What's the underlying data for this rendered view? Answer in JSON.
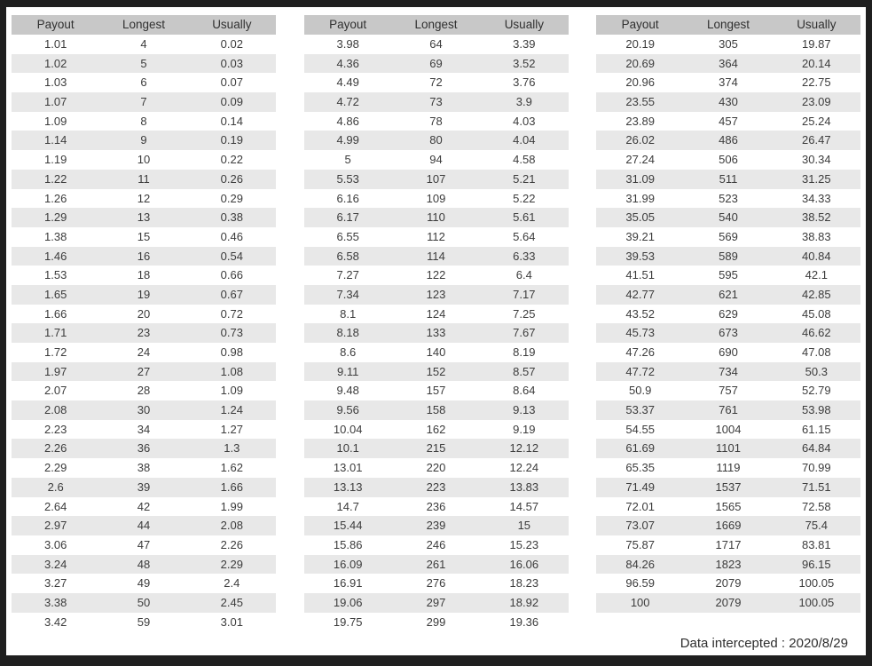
{
  "chart_data": {
    "type": "table",
    "columns": [
      "Payout",
      "Longest",
      "Usually"
    ],
    "tables": [
      {
        "name": "payout-table-1",
        "rows": [
          [
            "1.01",
            "4",
            "0.02"
          ],
          [
            "1.02",
            "5",
            "0.03"
          ],
          [
            "1.03",
            "6",
            "0.07"
          ],
          [
            "1.07",
            "7",
            "0.09"
          ],
          [
            "1.09",
            "8",
            "0.14"
          ],
          [
            "1.14",
            "9",
            "0.19"
          ],
          [
            "1.19",
            "10",
            "0.22"
          ],
          [
            "1.22",
            "11",
            "0.26"
          ],
          [
            "1.26",
            "12",
            "0.29"
          ],
          [
            "1.29",
            "13",
            "0.38"
          ],
          [
            "1.38",
            "15",
            "0.46"
          ],
          [
            "1.46",
            "16",
            "0.54"
          ],
          [
            "1.53",
            "18",
            "0.66"
          ],
          [
            "1.65",
            "19",
            "0.67"
          ],
          [
            "1.66",
            "20",
            "0.72"
          ],
          [
            "1.71",
            "23",
            "0.73"
          ],
          [
            "1.72",
            "24",
            "0.98"
          ],
          [
            "1.97",
            "27",
            "1.08"
          ],
          [
            "2.07",
            "28",
            "1.09"
          ],
          [
            "2.08",
            "30",
            "1.24"
          ],
          [
            "2.23",
            "34",
            "1.27"
          ],
          [
            "2.26",
            "36",
            "1.3"
          ],
          [
            "2.29",
            "38",
            "1.62"
          ],
          [
            "2.6",
            "39",
            "1.66"
          ],
          [
            "2.64",
            "42",
            "1.99"
          ],
          [
            "2.97",
            "44",
            "2.08"
          ],
          [
            "3.06",
            "47",
            "2.26"
          ],
          [
            "3.24",
            "48",
            "2.29"
          ],
          [
            "3.27",
            "49",
            "2.4"
          ],
          [
            "3.38",
            "50",
            "2.45"
          ],
          [
            "3.42",
            "59",
            "3.01"
          ]
        ]
      },
      {
        "name": "payout-table-2",
        "rows": [
          [
            "3.98",
            "64",
            "3.39"
          ],
          [
            "4.36",
            "69",
            "3.52"
          ],
          [
            "4.49",
            "72",
            "3.76"
          ],
          [
            "4.72",
            "73",
            "3.9"
          ],
          [
            "4.86",
            "78",
            "4.03"
          ],
          [
            "4.99",
            "80",
            "4.04"
          ],
          [
            "5",
            "94",
            "4.58"
          ],
          [
            "5.53",
            "107",
            "5.21"
          ],
          [
            "6.16",
            "109",
            "5.22"
          ],
          [
            "6.17",
            "110",
            "5.61"
          ],
          [
            "6.55",
            "112",
            "5.64"
          ],
          [
            "6.58",
            "114",
            "6.33"
          ],
          [
            "7.27",
            "122",
            "6.4"
          ],
          [
            "7.34",
            "123",
            "7.17"
          ],
          [
            "8.1",
            "124",
            "7.25"
          ],
          [
            "8.18",
            "133",
            "7.67"
          ],
          [
            "8.6",
            "140",
            "8.19"
          ],
          [
            "9.11",
            "152",
            "8.57"
          ],
          [
            "9.48",
            "157",
            "8.64"
          ],
          [
            "9.56",
            "158",
            "9.13"
          ],
          [
            "10.04",
            "162",
            "9.19"
          ],
          [
            "10.1",
            "215",
            "12.12"
          ],
          [
            "13.01",
            "220",
            "12.24"
          ],
          [
            "13.13",
            "223",
            "13.83"
          ],
          [
            "14.7",
            "236",
            "14.57"
          ],
          [
            "15.44",
            "239",
            "15"
          ],
          [
            "15.86",
            "246",
            "15.23"
          ],
          [
            "16.09",
            "261",
            "16.06"
          ],
          [
            "16.91",
            "276",
            "18.23"
          ],
          [
            "19.06",
            "297",
            "18.92"
          ],
          [
            "19.75",
            "299",
            "19.36"
          ]
        ]
      },
      {
        "name": "payout-table-3",
        "rows": [
          [
            "20.19",
            "305",
            "19.87"
          ],
          [
            "20.69",
            "364",
            "20.14"
          ],
          [
            "20.96",
            "374",
            "22.75"
          ],
          [
            "23.55",
            "430",
            "23.09"
          ],
          [
            "23.89",
            "457",
            "25.24"
          ],
          [
            "26.02",
            "486",
            "26.47"
          ],
          [
            "27.24",
            "506",
            "30.34"
          ],
          [
            "31.09",
            "511",
            "31.25"
          ],
          [
            "31.99",
            "523",
            "34.33"
          ],
          [
            "35.05",
            "540",
            "38.52"
          ],
          [
            "39.21",
            "569",
            "38.83"
          ],
          [
            "39.53",
            "589",
            "40.84"
          ],
          [
            "41.51",
            "595",
            "42.1"
          ],
          [
            "42.77",
            "621",
            "42.85"
          ],
          [
            "43.52",
            "629",
            "45.08"
          ],
          [
            "45.73",
            "673",
            "46.62"
          ],
          [
            "47.26",
            "690",
            "47.08"
          ],
          [
            "47.72",
            "734",
            "50.3"
          ],
          [
            "50.9",
            "757",
            "52.79"
          ],
          [
            "53.37",
            "761",
            "53.98"
          ],
          [
            "54.55",
            "1004",
            "61.15"
          ],
          [
            "61.69",
            "1101",
            "64.84"
          ],
          [
            "65.35",
            "1119",
            "70.99"
          ],
          [
            "71.49",
            "1537",
            "71.51"
          ],
          [
            "72.01",
            "1565",
            "72.58"
          ],
          [
            "73.07",
            "1669",
            "75.4"
          ],
          [
            "75.87",
            "1717",
            "83.81"
          ],
          [
            "84.26",
            "1823",
            "96.15"
          ],
          [
            "96.59",
            "2079",
            "100.05"
          ],
          [
            "100",
            "2079",
            "100.05"
          ]
        ]
      }
    ],
    "layout": {
      "legend": "none",
      "grid": "striped-rows"
    }
  },
  "footer": {
    "note": "Data intercepted : 2020/8/29"
  },
  "colors": {
    "frame": "#1f1f1f",
    "page": "#ffffff",
    "header_bg": "#c8c8c8",
    "stripe_bg": "#e8e8e8",
    "text": "#3c3c3c"
  }
}
